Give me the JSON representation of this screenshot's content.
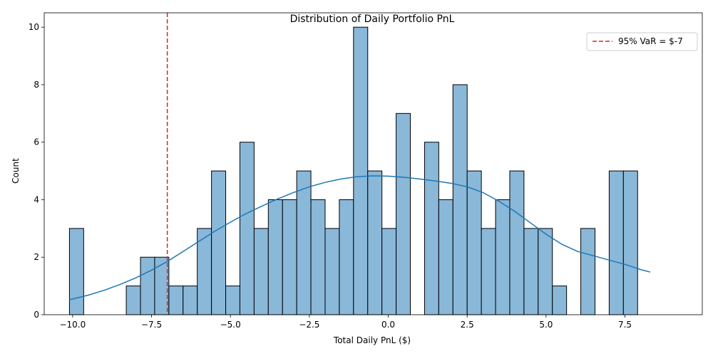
{
  "chart_data": {
    "type": "bar",
    "subtype": "histogram",
    "title": "Distribution of Daily Portfolio PnL",
    "xlabel": "Total Daily PnL ($)",
    "ylabel": "Count",
    "xlim": [
      -10.9,
      9.95
    ],
    "ylim": [
      0,
      10.5
    ],
    "xticks": [
      -10.0,
      -7.5,
      -5.0,
      -2.5,
      0.0,
      2.5,
      5.0,
      7.5
    ],
    "xtick_labels": [
      "−10.0",
      "−7.5",
      "−5.0",
      "−2.5",
      "0.0",
      "2.5",
      "5.0",
      "7.5"
    ],
    "yticks": [
      0,
      2,
      4,
      6,
      8,
      10
    ],
    "ytick_labels": [
      "0",
      "2",
      "4",
      "6",
      "8",
      "10"
    ],
    "grid": false,
    "bin_start": -10.1,
    "bin_width": 0.45,
    "counts": [
      3,
      0,
      0,
      0,
      1,
      2,
      2,
      1,
      1,
      3,
      5,
      1,
      6,
      3,
      4,
      4,
      5,
      4,
      3,
      4,
      10,
      5,
      3,
      7,
      0,
      6,
      4,
      8,
      5,
      3,
      4,
      5,
      3,
      3,
      1,
      0,
      3,
      0,
      5,
      5
    ],
    "bar_color": "#8ab8d9",
    "bar_edge_color": "#000000",
    "kde": {
      "color": "#1f77b4",
      "x": [
        -10.1,
        -9.5,
        -9.0,
        -8.5,
        -8.0,
        -7.5,
        -7.0,
        -6.5,
        -6.0,
        -5.5,
        -5.0,
        -4.5,
        -4.0,
        -3.5,
        -3.0,
        -2.5,
        -2.0,
        -1.5,
        -1.0,
        -0.5,
        0.0,
        0.5,
        1.0,
        1.5,
        2.0,
        2.5,
        3.0,
        3.5,
        4.0,
        4.5,
        5.0,
        5.5,
        6.0,
        6.5,
        7.0,
        7.5,
        8.0,
        8.3
      ],
      "y": [
        0.52,
        0.68,
        0.85,
        1.05,
        1.28,
        1.55,
        1.85,
        2.2,
        2.55,
        2.9,
        3.22,
        3.52,
        3.78,
        4.03,
        4.25,
        4.45,
        4.6,
        4.72,
        4.8,
        4.83,
        4.82,
        4.78,
        4.72,
        4.65,
        4.57,
        4.45,
        4.25,
        3.95,
        3.6,
        3.2,
        2.8,
        2.45,
        2.2,
        2.05,
        1.9,
        1.75,
        1.57,
        1.48
      ]
    },
    "var_line": {
      "x": -7,
      "color": "#d62728",
      "label": "95% VaR = $-7"
    },
    "legend_position": "top-right"
  }
}
